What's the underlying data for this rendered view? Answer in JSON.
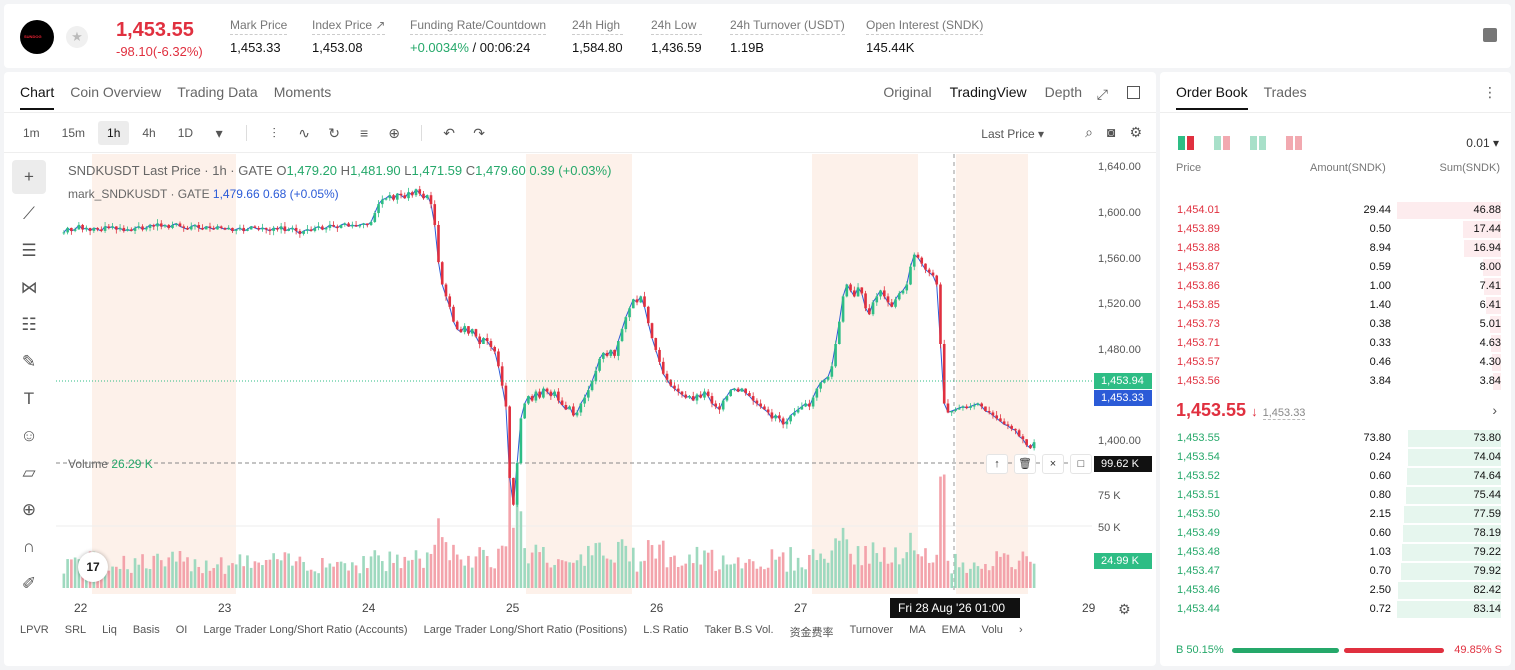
{
  "header": {
    "logo_text": "SUNDOG",
    "last_price": "1,453.55",
    "price_change": "-98.10(-6.32%)",
    "stats": [
      {
        "label": "Mark Price",
        "value": "1,453.33"
      },
      {
        "label": "Index Price ↗",
        "value": "1,453.08"
      },
      {
        "label": "Funding Rate/Countdown",
        "value_green": "+0.0034%",
        "value": " / 00:06:24"
      },
      {
        "label": "24h High",
        "value": "1,584.80"
      },
      {
        "label": "24h Low",
        "value": "1,436.59"
      },
      {
        "label": "24h Turnover (USDT)",
        "value": "1.19B"
      },
      {
        "label": "Open Interest (SNDK)",
        "value": "145.44K"
      }
    ]
  },
  "chart_panel": {
    "tabs": [
      "Chart",
      "Coin Overview",
      "Trading Data",
      "Moments"
    ],
    "active_tab": "Chart",
    "views": [
      "Original",
      "TradingView",
      "Depth"
    ],
    "active_view": "TradingView",
    "timeframes": [
      "1m",
      "15m",
      "1h",
      "4h",
      "1D"
    ],
    "active_timeframe": "1h",
    "price_source": "Last Price ▾",
    "legend_main": {
      "symbol": "SNDKUSDT Last Price · 1h · GATE",
      "o_label": "O",
      "o": "1,479.20",
      "h_label": "H",
      "h": "1,481.90",
      "l_label": "L",
      "l": "1,471.59",
      "c_label": "C",
      "c": "1,479.60",
      "chg": "0.39 (+0.03%)"
    },
    "legend_mark": {
      "name": "mark_SNDKUSDT · GATE",
      "value": "1,479.66 0.68 (+0.05%)"
    },
    "volume_legend": {
      "label": "Volume",
      "value": "26.29 K"
    },
    "price_tag_last": "1,453.94",
    "price_tag_mark": "1,453.33",
    "vol_tag_top": "99.62 K",
    "vol_tag_last": "24.99 K",
    "crosshair_date": "Fri 28 Aug '26   01:00",
    "indicators": [
      "LPVR",
      "SRL",
      "Liq",
      "Basis",
      "OI",
      "Large Trader Long/Short Ratio (Accounts)",
      "Large Trader Long/Short Ratio (Positions)",
      "L.S Ratio",
      "Taker B.S Vol.",
      "资金费率",
      "Turnover",
      "MA",
      "EMA",
      "Volu"
    ],
    "tv_logo": "17",
    "colors": {
      "up": "#2ebd85",
      "down": "#e0303f",
      "mark_line": "#2b5bd7"
    }
  },
  "chart_data": {
    "type": "candlestick",
    "title": "SNDKUSDT Last Price · 1h · GATE",
    "x_ticks": [
      "22",
      "23",
      "24",
      "25",
      "26",
      "27",
      "29"
    ],
    "y_ticks": [
      "1,640.00",
      "1,600.00",
      "1,560.00",
      "1,520.00",
      "1,480.00",
      "1,440.00",
      "1,400.00"
    ],
    "y_range": [
      1395,
      1645
    ],
    "volume_ticks": [
      "75 K",
      "50 K"
    ],
    "volume_range": [
      0,
      100
    ],
    "close_path": [
      1595,
      1598,
      1596,
      1597,
      1600,
      1597,
      1598,
      1596,
      1598,
      1597,
      1596,
      1599,
      1598,
      1599,
      1597,
      1598,
      1596,
      1597,
      1596,
      1598,
      1599,
      1597,
      1598,
      1600,
      1599,
      1601,
      1599,
      1600,
      1598,
      1600,
      1601,
      1599,
      1598,
      1597,
      1599,
      1600,
      1598,
      1597,
      1599,
      1598,
      1597,
      1599,
      1598,
      1597,
      1598,
      1596,
      1597,
      1598,
      1596,
      1597,
      1599,
      1598,
      1597,
      1598,
      1597,
      1596,
      1598,
      1597,
      1599,
      1596,
      1597,
      1598,
      1596,
      1594,
      1596,
      1597,
      1596,
      1598,
      1599,
      1597,
      1598,
      1600,
      1599,
      1598,
      1600,
      1601,
      1599,
      1600,
      1599,
      1600,
      1601,
      1600,
      1602,
      1608,
      1614,
      1617,
      1618,
      1620,
      1617,
      1621,
      1620,
      1618,
      1622,
      1620,
      1624,
      1621,
      1618,
      1620,
      1614,
      1600,
      1575,
      1560,
      1552,
      1545,
      1535,
      1530,
      1528,
      1532,
      1527,
      1530,
      1525,
      1520,
      1524,
      1522,
      1518,
      1515,
      1505,
      1492,
      1478,
      1430,
      1412,
      1440,
      1470,
      1480,
      1485,
      1482,
      1488,
      1484,
      1490,
      1488,
      1485,
      1488,
      1482,
      1479,
      1476,
      1478,
      1472,
      1474,
      1480,
      1484,
      1489,
      1495,
      1502,
      1510,
      1514,
      1512,
      1516,
      1512,
      1522,
      1530,
      1538,
      1544,
      1550,
      1548,
      1552,
      1545,
      1534,
      1524,
      1516,
      1508,
      1500,
      1496,
      1492,
      1490,
      1488,
      1486,
      1484,
      1485,
      1482,
      1486,
      1484,
      1488,
      1485,
      1480,
      1478,
      1476,
      1482,
      1485,
      1489,
      1490,
      1488,
      1490,
      1487,
      1485,
      1482,
      1480,
      1478,
      1476,
      1474,
      1470,
      1472,
      1470,
      1466,
      1468,
      1472,
      1474,
      1476,
      1478,
      1480,
      1478,
      1484,
      1490,
      1494,
      1496,
      1498,
      1505,
      1520,
      1535,
      1552,
      1560,
      1556,
      1552,
      1558,
      1554,
      1544,
      1540,
      1548,
      1552,
      1556,
      1552,
      1548,
      1545,
      1550,
      1554,
      1556,
      1560,
      1572,
      1580,
      1578,
      1574,
      1570,
      1568,
      1566,
      1560,
      1520,
      1480,
      1474,
      1475,
      1476,
      1477,
      1478,
      1477,
      1478,
      1479,
      1480,
      1478,
      1475,
      1474,
      1472,
      1470,
      1468,
      1466,
      1465,
      1463,
      1462,
      1458,
      1456,
      1452,
      1450,
      1454
    ]
  },
  "order_book": {
    "tabs": [
      "Order Book",
      "Trades"
    ],
    "active_tab": "Order Book",
    "precision": "0.01 ▾",
    "headers": [
      "Price",
      "Amount(SNDK)",
      "Sum(SNDK)"
    ],
    "asks": [
      {
        "price": "1,454.01",
        "amount": "29.44",
        "sum": "46.88",
        "depth": 1.0
      },
      {
        "price": "1,453.89",
        "amount": "0.50",
        "sum": "17.44",
        "depth": 0.37
      },
      {
        "price": "1,453.88",
        "amount": "8.94",
        "sum": "16.94",
        "depth": 0.36
      },
      {
        "price": "1,453.87",
        "amount": "0.59",
        "sum": "8.00",
        "depth": 0.17
      },
      {
        "price": "1,453.86",
        "amount": "1.00",
        "sum": "7.41",
        "depth": 0.16
      },
      {
        "price": "1,453.85",
        "amount": "1.40",
        "sum": "6.41",
        "depth": 0.14
      },
      {
        "price": "1,453.73",
        "amount": "0.38",
        "sum": "5.01",
        "depth": 0.11
      },
      {
        "price": "1,453.71",
        "amount": "0.33",
        "sum": "4.63",
        "depth": 0.1
      },
      {
        "price": "1,453.57",
        "amount": "0.46",
        "sum": "4.30",
        "depth": 0.09
      },
      {
        "price": "1,453.56",
        "amount": "3.84",
        "sum": "3.84",
        "depth": 0.08
      }
    ],
    "mid_price": "1,453.55",
    "mid_arrow": "↓",
    "mid_mark": "1,453.33",
    "bids": [
      {
        "price": "1,453.55",
        "amount": "73.80",
        "sum": "73.80",
        "depth": 0.89
      },
      {
        "price": "1,453.54",
        "amount": "0.24",
        "sum": "74.04",
        "depth": 0.89
      },
      {
        "price": "1,453.52",
        "amount": "0.60",
        "sum": "74.64",
        "depth": 0.9
      },
      {
        "price": "1,453.51",
        "amount": "0.80",
        "sum": "75.44",
        "depth": 0.91
      },
      {
        "price": "1,453.50",
        "amount": "2.15",
        "sum": "77.59",
        "depth": 0.93
      },
      {
        "price": "1,453.49",
        "amount": "0.60",
        "sum": "78.19",
        "depth": 0.94
      },
      {
        "price": "1,453.48",
        "amount": "1.03",
        "sum": "79.22",
        "depth": 0.95
      },
      {
        "price": "1,453.47",
        "amount": "0.70",
        "sum": "79.92",
        "depth": 0.96
      },
      {
        "price": "1,453.46",
        "amount": "2.50",
        "sum": "82.42",
        "depth": 0.99
      },
      {
        "price": "1,453.44",
        "amount": "0.72",
        "sum": "83.14",
        "depth": 1.0
      }
    ],
    "buy_ratio": "B 50.15%",
    "sell_ratio": "49.85% S"
  }
}
